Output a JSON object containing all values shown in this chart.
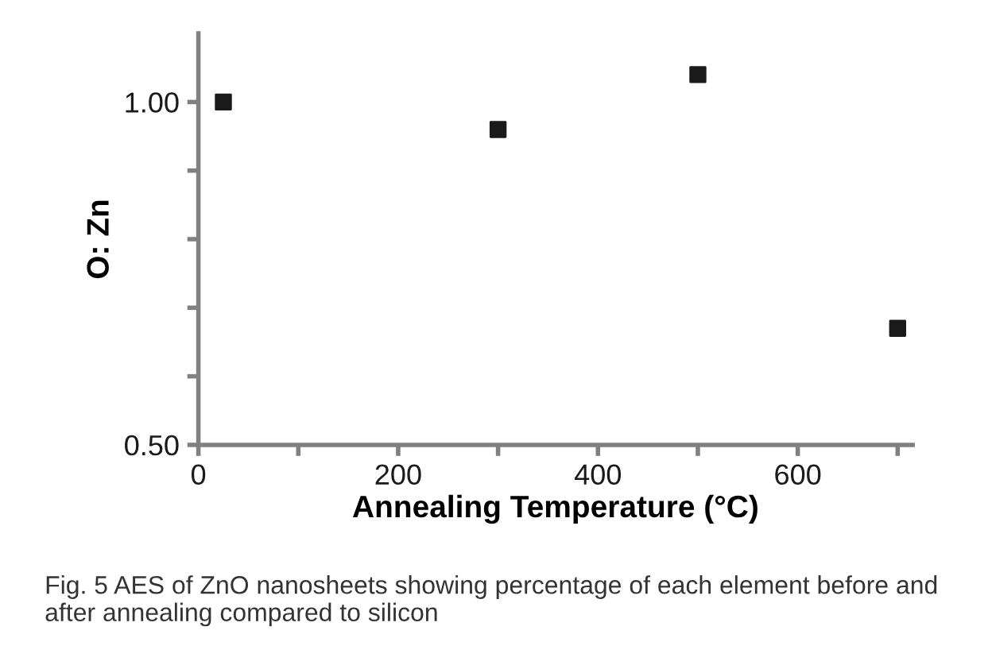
{
  "chart_data": {
    "type": "scatter",
    "xlabel": "Annealing Temperature (°C)",
    "ylabel": "O: Zn",
    "x": [
      25,
      300,
      500,
      700
    ],
    "series": [
      {
        "color": "#1a1a1a",
        "values": [
          1.0,
          0.96,
          1.04,
          0.67
        ]
      }
    ],
    "marker": "square",
    "grid": false,
    "legend": false,
    "xlim": [
      0,
      715
    ],
    "xticks": [
      0,
      {
        "value": 100,
        "label": null
      },
      200,
      {
        "value": 300,
        "label": null
      },
      400,
      {
        "value": 500,
        "label": null
      },
      600,
      {
        "value": 700,
        "label": null
      }
    ],
    "ylim": [
      0.5,
      1.1
    ],
    "yticks": [
      {
        "value": 0.5,
        "label": "0.50"
      },
      {
        "value": 0.6,
        "label": null
      },
      {
        "value": 0.7,
        "label": null
      },
      {
        "value": 0.8,
        "label": null
      },
      {
        "value": 0.9,
        "label": null
      },
      {
        "value": 1.0,
        "label": "1.00"
      }
    ],
    "annotations": [
      "Fig. 5 AES of ZnO nanosheets showing percentage of each element before and after annealing compared to silicon"
    ]
  }
}
